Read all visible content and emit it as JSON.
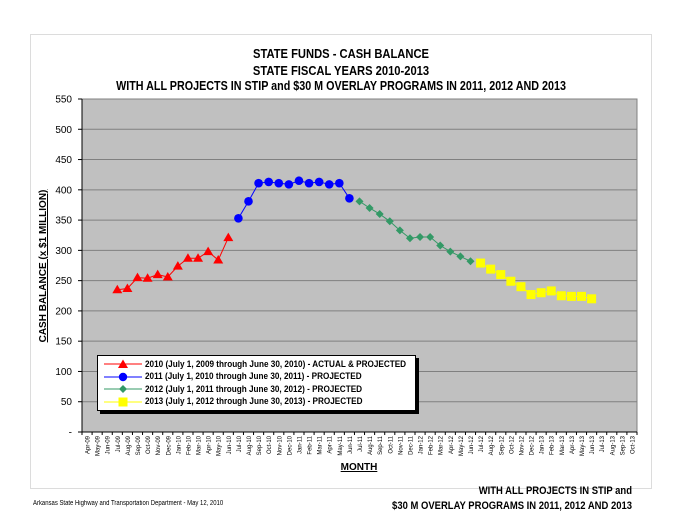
{
  "chart_data": {
    "type": "line",
    "title": "STATE FUNDS - CASH BALANCE",
    "subtitle": [
      "STATE FISCAL YEARS 2010-2013",
      "WITH ALL PROJECTS IN STIP and $30 M OVERLAY PROGRAMS IN 2011, 2012 AND 2013"
    ],
    "xlabel": "MONTH",
    "ylabel": "CASH BALANCE (x $1 MILLION)",
    "ylim": [
      0,
      550
    ],
    "yticks": [
      0,
      50,
      100,
      150,
      200,
      250,
      300,
      350,
      400,
      450,
      500,
      550
    ],
    "ytick_labels": [
      "-",
      "50",
      "100",
      "150",
      "200",
      "250",
      "300",
      "350",
      "400",
      "450",
      "500",
      "550"
    ],
    "grid": true,
    "legend_position": "lower-left inside plot",
    "categories": [
      "Apr-09",
      "May-09",
      "Jun-09",
      "Jul-09",
      "Aug-09",
      "Sep-09",
      "Oct-09",
      "Nov-09",
      "Dec-09",
      "Jan-10",
      "Feb-10",
      "Mar-10",
      "Apr-10",
      "May-10",
      "Jun-10",
      "Jul-10",
      "Aug-10",
      "Sep-10",
      "Oct-10",
      "Nov-10",
      "Dec-10",
      "Jan-11",
      "Feb-11",
      "Mar-11",
      "Apr-11",
      "May-11",
      "Jun-11",
      "Jul-11",
      "Aug-11",
      "Sep-11",
      "Oct-11",
      "Nov-11",
      "Dec-11",
      "Jan-12",
      "Feb-12",
      "Mar-12",
      "Apr-12",
      "May-12",
      "Jun-12",
      "Jul-12",
      "Aug-12",
      "Sep-12",
      "Oct-12",
      "Nov-12",
      "Dec-12",
      "Jan-13",
      "Feb-13",
      "Mar-13",
      "Apr-13",
      "May-13",
      "Jun-13",
      "Jul-13",
      "Aug-13",
      "Sep-13",
      "Oct-13"
    ],
    "series": [
      {
        "name": "2010 (July 1, 2009 through June 30, 2010) - ACTUAL & PROJECTED",
        "color": "#ff0000",
        "marker": "triangle",
        "start_index": 3,
        "values": [
          235,
          237,
          255,
          254,
          260,
          256,
          274,
          287,
          287,
          298,
          284,
          321
        ]
      },
      {
        "name": "2011 (July 1, 2010 through June 30, 2011) - PROJECTED",
        "color": "#0000ff",
        "marker": "circle",
        "start_index": 15,
        "values": [
          353,
          381,
          411,
          413,
          411,
          409,
          415,
          411,
          413,
          409,
          411,
          386
        ]
      },
      {
        "name": "2012 (July 1, 2011 through June 30, 2012) - PROJECTED",
        "color": "#339966",
        "marker": "diamond",
        "start_index": 27,
        "values": [
          381,
          370,
          360,
          348,
          333,
          320,
          322,
          322,
          308,
          298,
          290,
          282
        ]
      },
      {
        "name": "2013 (July 1, 2012 through June 30, 2013) - PROJECTED",
        "color": "#ffff00",
        "marker": "square",
        "start_index": 39,
        "values": [
          279,
          269,
          260,
          249,
          240,
          227,
          230,
          233,
          225,
          224,
          224,
          220
        ]
      }
    ]
  },
  "header": {
    "title": "STATE FUNDS - CASH BALANCE",
    "subtitle1": "STATE FISCAL YEARS 2010-2013",
    "subtitle2": "WITH ALL PROJECTS IN STIP and $30 M OVERLAY PROGRAMS IN 2011, 2012 AND 2013"
  },
  "footer": {
    "credit": "Arkansas State Highway and Transportation Department - May 12, 2010",
    "note_line1": "WITH ALL PROJECTS IN STIP and",
    "note_line2": "$30 M OVERLAY PROGRAMS IN 2011, 2012 AND 2013"
  },
  "style": {
    "plot_bg": "#c0c0c0",
    "gridline": "#808080"
  }
}
